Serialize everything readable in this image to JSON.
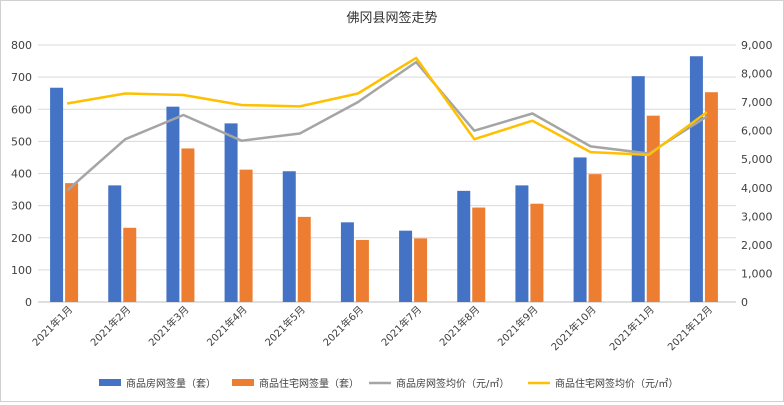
{
  "chart_data": {
    "type": "bar+line",
    "title": "佛冈县网签走势",
    "categories": [
      "2021年1月",
      "2021年2月",
      "2021年3月",
      "2021年4月",
      "2021年5月",
      "2021年6月",
      "2021年7月",
      "2021年8月",
      "2021年9月",
      "2021年10月",
      "2021年11月",
      "2021年12月"
    ],
    "xlabel": "",
    "ylabel": "",
    "ylim": [
      0,
      800
    ],
    "y2lim": [
      0,
      9000
    ],
    "yticks": [
      "0",
      "100",
      "200",
      "300",
      "400",
      "500",
      "600",
      "700",
      "800"
    ],
    "y2ticks": [
      "0",
      "1,000",
      "2,000",
      "3,000",
      "4,000",
      "5,000",
      "6,000",
      "7,000",
      "8,000",
      "9,000"
    ],
    "grid": true,
    "legend_position": "bottom",
    "series": [
      {
        "name": "商品房网签量（套）",
        "type": "bar",
        "axis": "left",
        "color": "#4472C4",
        "values": [
          667,
          363,
          608,
          556,
          407,
          248,
          222,
          346,
          363,
          450,
          703,
          765
        ]
      },
      {
        "name": "商品住宅网签量（套）",
        "type": "bar",
        "axis": "left",
        "color": "#ED7D31",
        "values": [
          370,
          231,
          478,
          412,
          265,
          193,
          198,
          294,
          306,
          398,
          580,
          653
        ]
      },
      {
        "name": "商品房网签均价（元/㎡）",
        "type": "line",
        "axis": "right",
        "color": "#A5A5A5",
        "values": [
          3900,
          5700,
          6550,
          5650,
          5900,
          7000,
          8400,
          6000,
          6600,
          5450,
          5200,
          6500
        ]
      },
      {
        "name": "商品住宅网签均价（元/㎡）",
        "type": "line",
        "axis": "right",
        "color": "#FFC000",
        "values": [
          6950,
          7300,
          7250,
          6900,
          6850,
          7300,
          8550,
          5700,
          6350,
          5250,
          5150,
          6650
        ]
      }
    ]
  }
}
